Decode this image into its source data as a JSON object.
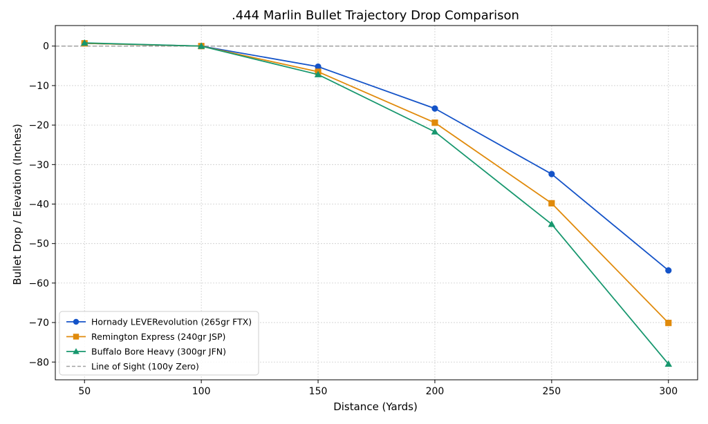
{
  "chart_data": {
    "type": "line",
    "title": ".444 Marlin Bullet Trajectory Drop Comparison",
    "xlabel": "Distance (Yards)",
    "ylabel": "Bullet Drop / Elevation (Inches)",
    "x": [
      50,
      100,
      150,
      200,
      250,
      300
    ],
    "xticks": [
      50,
      100,
      150,
      200,
      250,
      300
    ],
    "yticks": [
      0,
      -10,
      -20,
      -30,
      -40,
      -50,
      -60,
      -70,
      -80
    ],
    "ytick_labels": [
      "0",
      "−10",
      "−20",
      "−30",
      "−40",
      "−50",
      "−60",
      "−70",
      "−80"
    ],
    "xlim": [
      37.5,
      312.5
    ],
    "ylim": [
      -84.5,
      5.2
    ],
    "grid": true,
    "legend_position": "lower-left",
    "series": [
      {
        "name": "Hornady LEVERevolution (265gr FTX)",
        "values": [
          0.7,
          0.0,
          -5.2,
          -15.8,
          -32.4,
          -56.8
        ],
        "color": "#1453c8",
        "marker": "circle"
      },
      {
        "name": "Remington Express (240gr JSP)",
        "values": [
          0.7,
          0.0,
          -6.5,
          -19.4,
          -39.8,
          -70.1
        ],
        "color": "#e08a0b",
        "marker": "square"
      },
      {
        "name": "Buffalo Bore Heavy (300gr JFN)",
        "values": [
          0.8,
          0.0,
          -7.2,
          -21.7,
          -45.1,
          -80.5
        ],
        "color": "#17976e",
        "marker": "triangle"
      }
    ],
    "reference_line": {
      "name": "Line of Sight (100y Zero)",
      "y": 0,
      "color": "#a0a0a0",
      "style": "dashed"
    }
  }
}
